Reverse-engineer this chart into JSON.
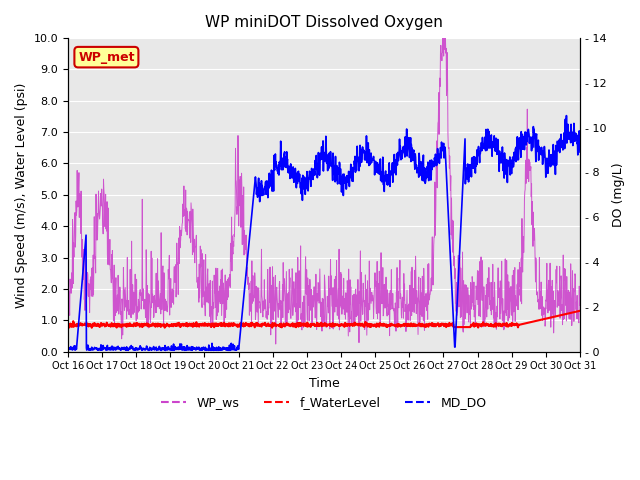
{
  "title": "WP miniDOT Dissolved Oxygen",
  "xlabel": "Time",
  "ylabel_left": "Wind Speed (m/s), Water Level (psi)",
  "ylabel_right": "DO (mg/L)",
  "xlim": [
    0,
    15
  ],
  "ylim_left": [
    0.0,
    10.0
  ],
  "ylim_right": [
    0,
    14
  ],
  "yticks_left": [
    0.0,
    1.0,
    2.0,
    3.0,
    4.0,
    5.0,
    6.0,
    7.0,
    8.0,
    9.0,
    10.0
  ],
  "yticks_right": [
    0,
    2,
    4,
    6,
    8,
    10,
    12,
    14
  ],
  "xtick_labels": [
    "Oct 16",
    "Oct 17",
    "Oct 18",
    "Oct 19",
    "Oct 20",
    "Oct 21",
    "Oct 22",
    "Oct 23",
    "Oct 24",
    "Oct 25",
    "Oct 26",
    "Oct 27",
    "Oct 28",
    "Oct 29",
    "Oct 30",
    "Oct 31"
  ],
  "color_ws": "#CC44CC",
  "color_wl": "#FF0000",
  "color_do": "#0000FF",
  "legend_label_ws": "WP_ws",
  "legend_label_wl": "f_WaterLevel",
  "legend_label_do": "MD_DO",
  "annotation_text": "WP_met",
  "annotation_bg": "#FFFF99",
  "annotation_border": "#CC0000",
  "background_color": "#E8E8E8",
  "grid_color": "#FFFFFF"
}
